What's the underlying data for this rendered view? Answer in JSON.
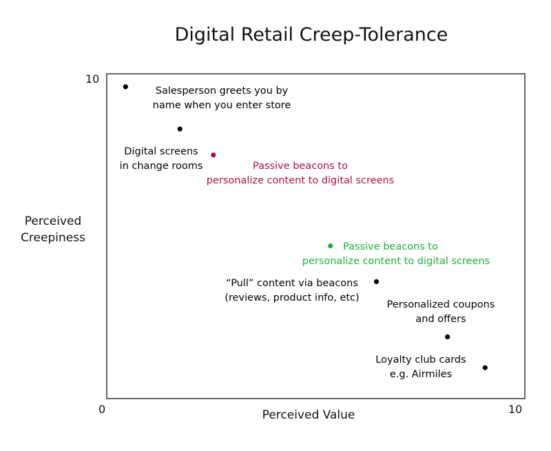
{
  "chart_data": {
    "type": "scatter",
    "title": "Digital Retail Creep-Tolerance",
    "xlabel": "Perceived Value",
    "ylabel": [
      "Perceived",
      "Creepiness"
    ],
    "xlim": [
      0,
      10
    ],
    "ylim": [
      0,
      10
    ],
    "x_tick_labels": [
      "0",
      "10"
    ],
    "y_tick_labels": [
      "10"
    ],
    "grid": false,
    "legend": "none",
    "colors": {
      "default": "#000000",
      "red": "#b0103e",
      "green": "#1fae3c"
    },
    "points": [
      {
        "x": 0.45,
        "y": 9.6,
        "color": "#000000",
        "label": [
          "Salesperson greets you by",
          "name when you enter store"
        ]
      },
      {
        "x": 1.75,
        "y": 8.3,
        "color": "#000000",
        "label": [
          "Digital screens",
          "in change rooms"
        ]
      },
      {
        "x": 2.55,
        "y": 7.5,
        "color": "#b0103e",
        "label": [
          "Passive beacons to",
          "personalize content to digital screens"
        ]
      },
      {
        "x": 5.35,
        "y": 4.7,
        "color": "#1fae3c",
        "label": [
          "Passive beacons to",
          "personalize content to digital screens"
        ]
      },
      {
        "x": 6.45,
        "y": 3.6,
        "color": "#000000",
        "label": [
          "“Pull” content via beacons",
          "(reviews, product info, etc)"
        ]
      },
      {
        "x": 8.15,
        "y": 1.9,
        "color": "#000000",
        "label": [
          "Personalized coupons",
          "and offers"
        ]
      },
      {
        "x": 9.05,
        "y": 0.95,
        "color": "#000000",
        "label": [
          "Loyalty club cards",
          "e.g. Airmiles"
        ]
      }
    ]
  }
}
